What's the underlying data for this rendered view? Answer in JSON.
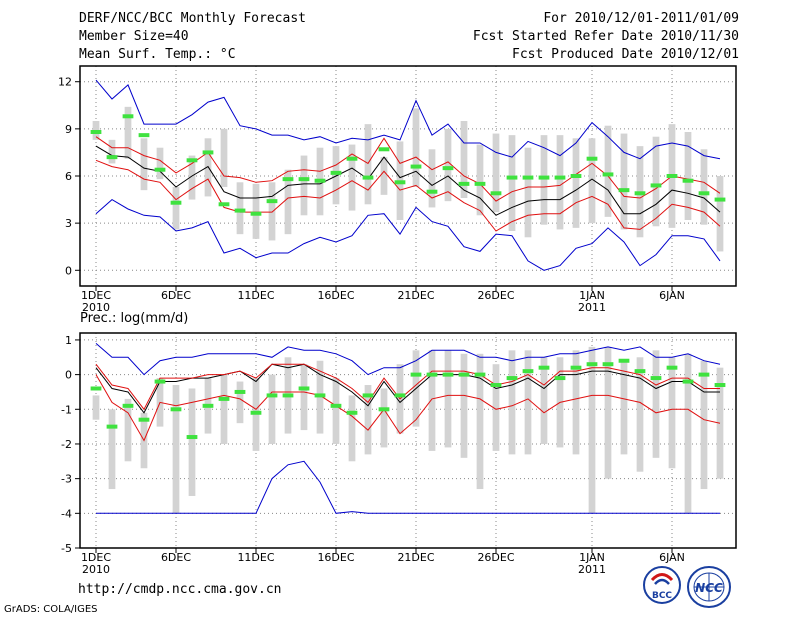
{
  "header": {
    "title": "DERF/NCC/BCC Monthly Forecast",
    "member_size": "Member Size=40",
    "var1_label": "Mean Surf. Temp.: °C",
    "period": "For 2010/12/01-2011/01/09",
    "fcst_started": "Fcst Started Refer Date 2010/11/30",
    "fcst_produced": "Fcst Produced Date 2010/12/01"
  },
  "footer": {
    "url": "http://cmdp.ncc.cma.gov.cn",
    "grads": "GrADS: COLA/IGES",
    "logo_bcc": "BCC",
    "logo_ncc": "NCC"
  },
  "colors": {
    "box": "#d3d3d3",
    "median": "#3fe23f",
    "mean": "#000000",
    "inner": "#e01010",
    "outer": "#0000cc"
  },
  "chart_data": [
    {
      "type": "line",
      "title": "Mean Surf. Temp.: °C",
      "x_tick_labels": [
        "1DEC",
        "6DEC",
        "11DEC",
        "16DEC",
        "21DEC",
        "26DEC",
        "1JAN",
        "6JAN"
      ],
      "x_tick_days": [
        1,
        6,
        11,
        16,
        21,
        26,
        32,
        37
      ],
      "x_year_labels": [
        {
          "day": 1,
          "text": "2010"
        },
        {
          "day": 32,
          "text": "2011"
        }
      ],
      "xlim": [
        1,
        40
      ],
      "ylim": [
        -1,
        13
      ],
      "y_ticks": [
        0,
        3,
        6,
        9,
        12
      ],
      "grid": true,
      "box_low": [
        8.3,
        6.8,
        7.1,
        5.1,
        5.8,
        2.6,
        4.5,
        4.7,
        5.3,
        2.3,
        2.0,
        1.9,
        2.3,
        3.5,
        3.5,
        4.2,
        3.8,
        4.2,
        4.8,
        3.2,
        5.3,
        4.0,
        4.4,
        4.6,
        3.5,
        3.7,
        2.5,
        2.1,
        2.9,
        2.6,
        2.7,
        3.0,
        3.4,
        2.6,
        2.1,
        2.8,
        2.7,
        3.2,
        2.9,
        1.2
      ],
      "box_high": [
        9.5,
        8.3,
        10.4,
        8.4,
        7.8,
        5.3,
        7.3,
        8.4,
        9.0,
        5.6,
        5.5,
        5.6,
        6.4,
        7.3,
        7.8,
        7.9,
        8.0,
        9.3,
        7.2,
        8.2,
        10.3,
        7.7,
        9.0,
        9.5,
        8.0,
        8.7,
        8.6,
        7.8,
        8.6,
        8.6,
        8.4,
        8.4,
        9.2,
        8.7,
        7.9,
        8.5,
        9.3,
        8.8,
        7.7,
        6.0
      ],
      "median": [
        8.8,
        7.2,
        9.8,
        8.6,
        6.4,
        4.3,
        7.0,
        7.5,
        4.2,
        3.8,
        3.6,
        4.4,
        5.8,
        5.8,
        5.7,
        6.2,
        7.1,
        5.9,
        7.7,
        5.6,
        6.6,
        5.0,
        6.5,
        5.5,
        5.5,
        4.9,
        5.9,
        5.9,
        5.9,
        5.9,
        6.0,
        7.1,
        6.1,
        5.1,
        4.9,
        5.4,
        6.0,
        5.7,
        4.9,
        4.5
      ],
      "series": [
        {
          "name": "ensemble-mean",
          "values": [
            7.9,
            7.3,
            7.2,
            6.5,
            6.3,
            5.3,
            6.0,
            6.6,
            5.0,
            4.6,
            4.6,
            4.7,
            5.4,
            5.5,
            5.5,
            6.0,
            6.5,
            5.8,
            7.2,
            5.9,
            6.3,
            5.4,
            6.0,
            5.1,
            4.6,
            3.5,
            4.0,
            4.4,
            4.5,
            4.5,
            5.1,
            5.8,
            5.1,
            3.6,
            3.6,
            4.2,
            5.1,
            4.9,
            4.6,
            3.7
          ]
        },
        {
          "name": "upper-inner",
          "values": [
            8.5,
            7.8,
            7.8,
            7.3,
            7.0,
            6.2,
            6.8,
            7.5,
            6.0,
            5.9,
            5.6,
            5.7,
            6.3,
            6.4,
            6.3,
            6.7,
            7.4,
            6.8,
            8.4,
            6.8,
            7.2,
            6.4,
            6.9,
            6.0,
            5.5,
            4.4,
            5.0,
            5.3,
            5.3,
            5.4,
            6.1,
            6.8,
            6.0,
            4.7,
            4.6,
            5.2,
            6.0,
            5.8,
            5.6,
            4.9
          ]
        },
        {
          "name": "lower-inner",
          "values": [
            7.0,
            6.6,
            6.4,
            5.8,
            5.6,
            4.5,
            5.2,
            5.8,
            4.0,
            3.7,
            3.7,
            3.7,
            4.6,
            4.7,
            4.6,
            5.1,
            5.7,
            5.1,
            6.3,
            5.1,
            5.4,
            4.6,
            5.0,
            4.3,
            3.8,
            2.5,
            3.1,
            3.5,
            3.6,
            3.6,
            4.3,
            4.7,
            4.2,
            2.7,
            2.6,
            3.3,
            4.2,
            4.0,
            3.7,
            2.8
          ]
        },
        {
          "name": "upper-envelope",
          "values": [
            12.1,
            10.9,
            11.8,
            9.3,
            9.3,
            9.3,
            9.9,
            10.7,
            11.0,
            9.2,
            9.0,
            8.6,
            8.6,
            8.3,
            8.5,
            8.1,
            8.4,
            8.3,
            8.6,
            8.3,
            10.8,
            8.6,
            9.3,
            8.1,
            8.1,
            7.5,
            7.2,
            8.2,
            7.8,
            7.3,
            8.1,
            9.4,
            8.5,
            7.5,
            7.1,
            7.9,
            8.1,
            7.9,
            7.3,
            7.1
          ]
        },
        {
          "name": "lower-envelope",
          "values": [
            3.6,
            4.5,
            3.9,
            3.5,
            3.4,
            2.5,
            2.7,
            3.1,
            1.1,
            1.4,
            0.8,
            1.1,
            1.1,
            1.7,
            2.1,
            1.8,
            2.2,
            3.5,
            3.6,
            2.3,
            4.0,
            3.1,
            2.8,
            1.5,
            1.2,
            2.3,
            2.2,
            0.6,
            0.0,
            0.3,
            1.4,
            1.7,
            2.7,
            1.8,
            0.3,
            1.0,
            2.2,
            2.2,
            2.0,
            0.6
          ]
        }
      ]
    },
    {
      "type": "line",
      "title": "Prec.: log(mm/d)",
      "x_tick_labels": [
        "1DEC",
        "6DEC",
        "11DEC",
        "16DEC",
        "21DEC",
        "26DEC",
        "1JAN",
        "6JAN"
      ],
      "x_tick_days": [
        1,
        6,
        11,
        16,
        21,
        26,
        32,
        37
      ],
      "x_year_labels": [
        {
          "day": 1,
          "text": "2010"
        },
        {
          "day": 32,
          "text": "2011"
        }
      ],
      "xlim": [
        1,
        40
      ],
      "ylim": [
        -5,
        1.2
      ],
      "y_ticks": [
        -5,
        -4,
        -3,
        -2,
        -1,
        0,
        1
      ],
      "grid": true,
      "box_low": [
        -1.3,
        -3.3,
        -2.5,
        -2.7,
        -1.5,
        -4.0,
        -3.5,
        -1.7,
        -2.0,
        -1.4,
        -2.2,
        -2.0,
        -1.7,
        -1.6,
        -1.7,
        -2.0,
        -2.5,
        -2.3,
        -2.1,
        -1.7,
        -1.5,
        -2.2,
        -2.1,
        -2.4,
        -3.3,
        -2.2,
        -2.3,
        -2.3,
        -2.0,
        -2.1,
        -2.3,
        -4.0,
        -3.0,
        -2.3,
        -2.8,
        -2.4,
        -2.7,
        -4.0,
        -3.3,
        -3.0
      ],
      "box_high": [
        -0.6,
        -1.0,
        -0.7,
        -1.1,
        -0.1,
        -0.3,
        -0.4,
        -0.1,
        0.0,
        -0.2,
        -0.1,
        0.0,
        0.5,
        0.3,
        0.4,
        -0.1,
        -0.6,
        -0.3,
        -0.4,
        0.3,
        0.7,
        0.7,
        0.7,
        0.6,
        0.6,
        0.3,
        0.7,
        0.7,
        0.5,
        0.5,
        0.7,
        0.8,
        0.8,
        0.4,
        0.5,
        0.7,
        0.5,
        0.6,
        0.4,
        0.2
      ],
      "median": [
        -0.4,
        -1.5,
        -0.9,
        -1.3,
        -0.2,
        -1.0,
        -1.8,
        -0.9,
        -0.7,
        -0.5,
        -1.1,
        -0.6,
        -0.6,
        -0.4,
        -0.6,
        -0.9,
        -1.1,
        -0.6,
        -1.0,
        -0.6,
        0.0,
        0.0,
        0.0,
        0.0,
        0.0,
        -0.3,
        -0.1,
        0.1,
        0.2,
        -0.1,
        0.2,
        0.3,
        0.3,
        0.4,
        0.1,
        -0.1,
        0.2,
        -0.2,
        0.0,
        -0.3
      ],
      "series": [
        {
          "name": "ensemble-mean",
          "values": [
            0.2,
            -0.4,
            -0.5,
            -1.1,
            -0.2,
            -0.2,
            -0.1,
            -0.1,
            0.0,
            0.1,
            -0.2,
            0.3,
            0.2,
            0.3,
            0.0,
            -0.2,
            -0.5,
            -0.9,
            -0.2,
            -0.8,
            -0.4,
            0.0,
            0.0,
            0.0,
            -0.1,
            -0.4,
            -0.3,
            -0.1,
            -0.4,
            0.0,
            0.0,
            0.1,
            0.1,
            0.0,
            -0.1,
            -0.4,
            -0.2,
            -0.2,
            -0.5,
            -0.5
          ]
        },
        {
          "name": "upper-inner",
          "values": [
            0.3,
            -0.3,
            -0.4,
            -1.0,
            -0.1,
            -0.1,
            -0.1,
            0.0,
            0.0,
            0.1,
            -0.1,
            0.3,
            0.3,
            0.3,
            0.1,
            -0.1,
            -0.4,
            -0.8,
            -0.1,
            -0.7,
            -0.3,
            0.1,
            0.1,
            0.1,
            0.0,
            -0.3,
            -0.2,
            0.0,
            -0.3,
            0.1,
            0.1,
            0.2,
            0.2,
            0.1,
            0.0,
            -0.3,
            -0.1,
            -0.1,
            -0.4,
            -0.4
          ]
        },
        {
          "name": "lower-inner",
          "values": [
            0.0,
            -0.8,
            -1.1,
            -1.9,
            -0.8,
            -0.9,
            -0.8,
            -0.7,
            -0.6,
            -0.7,
            -1.0,
            -0.5,
            -0.5,
            -0.5,
            -0.6,
            -0.9,
            -1.2,
            -1.6,
            -1.0,
            -1.7,
            -1.3,
            -0.7,
            -0.6,
            -0.6,
            -0.7,
            -1.0,
            -0.9,
            -0.7,
            -1.1,
            -0.8,
            -0.7,
            -0.6,
            -0.6,
            -0.7,
            -0.8,
            -1.1,
            -1.0,
            -1.0,
            -1.3,
            -1.4
          ]
        },
        {
          "name": "upper-envelope",
          "values": [
            0.9,
            0.5,
            0.5,
            0.0,
            0.4,
            0.5,
            0.5,
            0.6,
            0.6,
            0.6,
            0.6,
            0.5,
            0.8,
            0.7,
            0.7,
            0.6,
            0.4,
            0.0,
            0.2,
            0.2,
            0.4,
            0.7,
            0.7,
            0.7,
            0.5,
            0.5,
            0.4,
            0.5,
            0.5,
            0.6,
            0.6,
            0.7,
            0.8,
            0.7,
            0.8,
            0.5,
            0.5,
            0.6,
            0.4,
            0.3
          ]
        },
        {
          "name": "lower-envelope",
          "values": [
            -4.0,
            -4.0,
            -4.0,
            -4.0,
            -4.0,
            -4.0,
            -4.0,
            -4.0,
            -4.0,
            -4.0,
            -4.0,
            -3.0,
            -2.6,
            -2.5,
            -3.1,
            -4.0,
            -3.95,
            -4.0,
            -4.0,
            -4.0,
            -4.0,
            -4.0,
            -4.0,
            -4.0,
            -4.0,
            -4.0,
            -4.0,
            -4.0,
            -4.0,
            -4.0,
            -4.0,
            -4.0,
            -4.0,
            -4.0,
            -4.0,
            -4.0,
            -4.0,
            -4.0,
            -4.0,
            -4.0
          ]
        }
      ]
    }
  ]
}
